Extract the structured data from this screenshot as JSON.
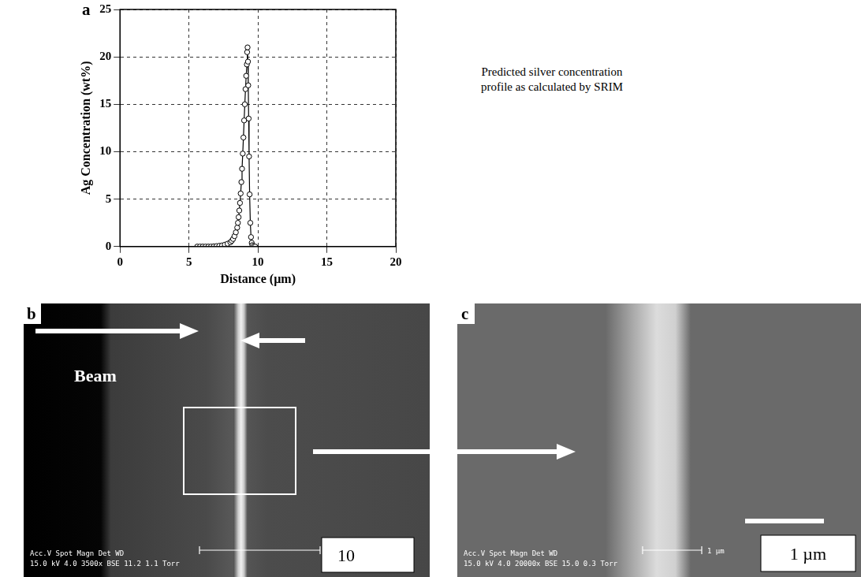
{
  "panel_labels": [
    "a",
    "b",
    "c"
  ],
  "chart_data": {
    "type": "scatter",
    "x_label": "Distance (µm)",
    "y_label": "Ag Concentration (wt%)",
    "x": [
      5.6,
      5.8,
      6.0,
      6.2,
      6.4,
      6.6,
      6.8,
      7.0,
      7.2,
      7.4,
      7.6,
      7.8,
      8.0,
      8.1,
      8.2,
      8.3,
      8.4,
      8.5,
      8.55,
      8.6,
      8.65,
      8.7,
      8.75,
      8.8,
      8.85,
      8.9,
      8.95,
      9.0,
      9.05,
      9.1,
      9.15,
      9.2,
      9.22,
      9.25,
      9.28,
      9.3,
      9.33,
      9.36,
      9.4,
      9.45,
      9.5,
      9.55,
      9.6,
      9.7,
      9.8
    ],
    "values": [
      0,
      0,
      0,
      0,
      0,
      0,
      0.02,
      0.05,
      0.08,
      0.12,
      0.2,
      0.3,
      0.45,
      0.6,
      0.8,
      1.1,
      1.5,
      2.0,
      2.5,
      3.1,
      3.8,
      4.6,
      5.6,
      6.8,
      8.2,
      9.8,
      11.5,
      13.3,
      15.0,
      16.6,
      18.0,
      19.2,
      20.5,
      21.0,
      19.5,
      17.0,
      13.5,
      9.5,
      5.5,
      2.5,
      1.0,
      0.4,
      0.15,
      0.05,
      0
    ],
    "color": "#000000",
    "marker": "circle",
    "line_style": "solid",
    "xlim": [
      0,
      20
    ],
    "xticks": [
      0,
      5,
      10,
      15,
      20
    ],
    "ylim": [
      0,
      25
    ],
    "yticks": [
      0,
      5,
      10,
      15,
      20,
      25
    ],
    "grid": true
  },
  "side_note": "Predicted silver concentration profile as calculated by SRIM",
  "sem_images": [
    {
      "beam_label": "Beam",
      "info_header": "Acc.V  Spot Magn    Det  WD",
      "info_values": "15.0 kV 4.0  3500x   BSE 11.2 1.1 Torr",
      "scale_label": "10"
    },
    {
      "info_header": "Acc.V  Spot Magn    Det  WD",
      "info_values": "15.0 kV 4.0  20000x  BSE 15.0 0.3 Torr",
      "scale_bar_text": "1 µm",
      "scale_label": "1 µm"
    }
  ]
}
